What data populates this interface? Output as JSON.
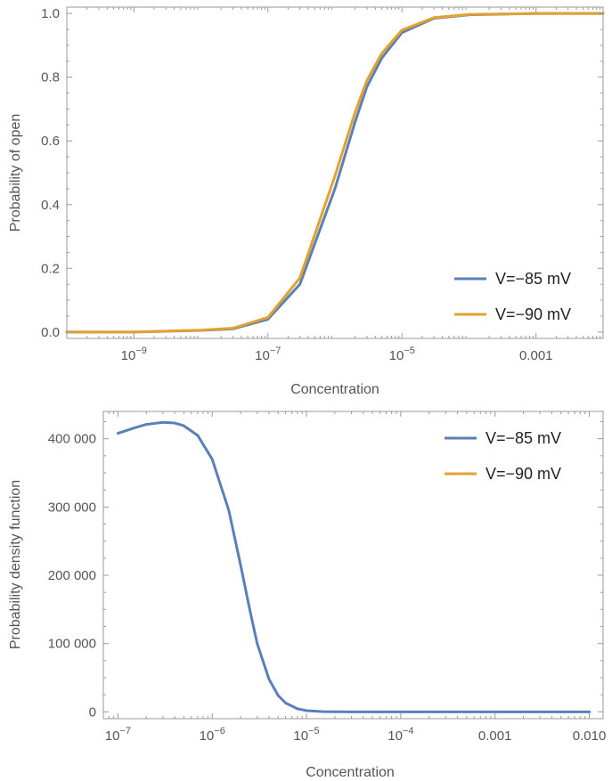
{
  "colors": {
    "series1": "#5b7fb8",
    "series2": "#e3a22d",
    "frame": "#9a9a9a",
    "text": "#555555"
  },
  "chart_data": [
    {
      "type": "line",
      "title": "",
      "xlabel": "Concentration",
      "ylabel": "Probability of open",
      "xscale": "log",
      "xlim": [
        1e-10,
        0.01
      ],
      "ylim": [
        -0.02,
        1.02
      ],
      "legend_position": "bottom-right",
      "xticks": [
        {
          "value": 1e-09,
          "base": "10",
          "exp": "−9"
        },
        {
          "value": 1e-07,
          "base": "10",
          "exp": "−7"
        },
        {
          "value": 1e-05,
          "base": "10",
          "exp": "−5"
        },
        {
          "value": 0.001,
          "label": "0.001"
        }
      ],
      "yticks": [
        {
          "value": 0.0,
          "label": "0.0"
        },
        {
          "value": 0.2,
          "label": "0.2"
        },
        {
          "value": 0.4,
          "label": "0.4"
        },
        {
          "value": 0.6,
          "label": "0.6"
        },
        {
          "value": 0.8,
          "label": "0.8"
        },
        {
          "value": 1.0,
          "label": "1.0"
        }
      ],
      "series": [
        {
          "name": "V=−85 mV",
          "color": "#5b7fb8",
          "x": [
            1e-10,
            1e-09,
            1e-08,
            3e-08,
            1e-07,
            3e-07,
            1e-06,
            2e-06,
            3e-06,
            5e-06,
            1e-05,
            3e-05,
            0.0001,
            0.001,
            0.01
          ],
          "y": [
            0.0,
            0.0,
            0.005,
            0.01,
            0.04,
            0.15,
            0.45,
            0.66,
            0.77,
            0.86,
            0.94,
            0.985,
            0.996,
            1.0,
            1.0
          ]
        },
        {
          "name": "V=−90 mV",
          "color": "#e3a22d",
          "x": [
            1e-10,
            1e-09,
            1e-08,
            3e-08,
            1e-07,
            3e-07,
            1e-06,
            2e-06,
            3e-06,
            5e-06,
            1e-05,
            3e-05,
            0.0001,
            0.001,
            0.01
          ],
          "y": [
            0.0,
            0.0,
            0.006,
            0.012,
            0.046,
            0.17,
            0.49,
            0.69,
            0.79,
            0.875,
            0.948,
            0.987,
            0.997,
            1.0,
            1.0
          ]
        }
      ]
    },
    {
      "type": "line",
      "title": "",
      "xlabel": "Concentration",
      "ylabel": "Probability density function",
      "xscale": "log",
      "xlim": [
        7e-08,
        0.014
      ],
      "ylim": [
        -10000,
        440000
      ],
      "legend_position": "top-right",
      "xticks": [
        {
          "value": 1e-07,
          "base": "10",
          "exp": "−7"
        },
        {
          "value": 1e-06,
          "base": "10",
          "exp": "−6"
        },
        {
          "value": 1e-05,
          "base": "10",
          "exp": "−5"
        },
        {
          "value": 0.0001,
          "base": "10",
          "exp": "−4"
        },
        {
          "value": 0.001,
          "label": "0.001"
        },
        {
          "value": 0.01,
          "label": "0.010"
        }
      ],
      "yticks": [
        {
          "value": 0,
          "label": "0"
        },
        {
          "value": 100000,
          "label": "100 000"
        },
        {
          "value": 200000,
          "label": "200 000"
        },
        {
          "value": 300000,
          "label": "300 000"
        },
        {
          "value": 400000,
          "label": "400 000"
        }
      ],
      "series": [
        {
          "name": "V=−85 mV",
          "color": "#5b7fb8",
          "x": [
            1e-07,
            1.5e-07,
            2e-07,
            3e-07,
            4e-07,
            5e-07,
            7e-07,
            1e-06,
            1.5e-06,
            2e-06,
            2.5e-06,
            3e-06,
            4e-06,
            5e-06,
            6e-06,
            8e-06,
            1e-05,
            1.5e-05,
            2e-05,
            3e-05,
            0.0001,
            0.001,
            0.01
          ],
          "y": [
            408000,
            416000,
            421000,
            424000,
            423000,
            419000,
            405000,
            370000,
            295000,
            215000,
            150000,
            100000,
            48000,
            24000,
            13000,
            4500,
            1800,
            300,
            80,
            0,
            0,
            0,
            0
          ]
        },
        {
          "name": "V=−90 mV",
          "color": "#e3a22d",
          "x": [],
          "y": []
        }
      ]
    }
  ]
}
